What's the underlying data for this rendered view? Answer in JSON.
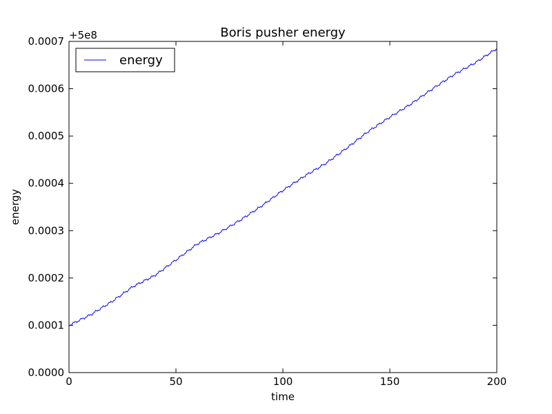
{
  "chart_data": {
    "type": "line",
    "title": "Boris pusher energy",
    "xlabel": "time",
    "ylabel": "energy",
    "offset_label": "+5e8",
    "xlim": [
      0,
      200
    ],
    "ylim": [
      0.0,
      0.0007
    ],
    "x_ticks": [
      0,
      50,
      100,
      150,
      200
    ],
    "x_tick_labels": [
      "0",
      "50",
      "100",
      "150",
      "200"
    ],
    "y_ticks": [
      0.0,
      0.0001,
      0.0002,
      0.0003,
      0.0004,
      0.0005,
      0.0006,
      0.0007
    ],
    "y_tick_labels": [
      "0.0000",
      "0.0001",
      "0.0002",
      "0.0003",
      "0.0004",
      "0.0005",
      "0.0006",
      "0.0007"
    ],
    "grid": false,
    "legend_position": "top-left",
    "series": [
      {
        "name": "energy",
        "color": "#0000ff",
        "x": [
          0,
          10,
          20,
          30,
          40,
          50,
          60,
          70,
          80,
          90,
          100,
          110,
          120,
          130,
          140,
          150,
          160,
          170,
          180,
          190,
          200
        ],
        "y": [
          0.0001,
          0.000122,
          0.00015,
          0.000182,
          0.000205,
          0.000238,
          0.000272,
          0.000295,
          0.000322,
          0.000352,
          0.000385,
          0.000415,
          0.000442,
          0.000475,
          0.00051,
          0.00054,
          0.000568,
          0.0006,
          0.00063,
          0.000655,
          0.000685
        ]
      }
    ]
  }
}
